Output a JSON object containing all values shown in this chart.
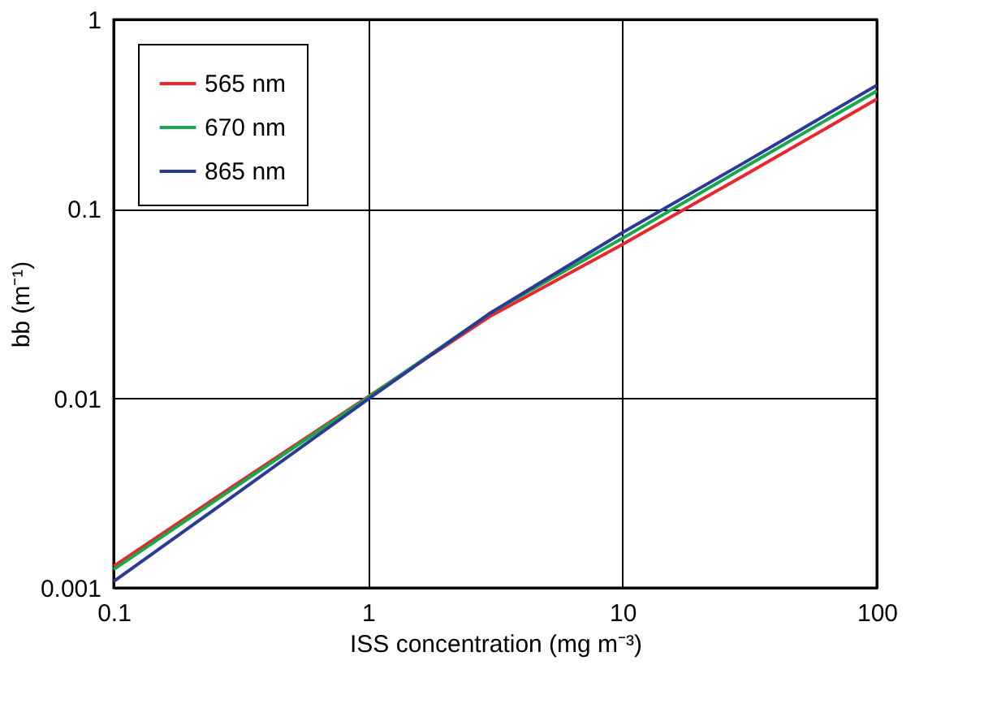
{
  "chart_data": {
    "type": "line",
    "xlabel": "ISS concentration (mg m⁻³)",
    "ylabel": "bb (m⁻¹)",
    "log": "xy",
    "grid": true,
    "legend": "top left",
    "marker": "none",
    "line_style": "solid",
    "x": [
      0.1,
      0.3,
      1,
      3,
      10,
      30,
      100
    ],
    "xlim": [
      0.1,
      100
    ],
    "xticks": [
      0.1,
      1,
      10,
      100
    ],
    "ylim": [
      0.001,
      1
    ],
    "yticks": [
      0.001,
      0.01,
      0.1,
      1
    ],
    "series": [
      {
        "name": "565 nm",
        "color": "#e8262b",
        "values": [
          0.0013,
          0.0035,
          0.0102,
          0.027,
          0.065,
          0.15,
          0.38
        ]
      },
      {
        "name": "670 nm",
        "color": "#17a84b",
        "values": [
          0.00125,
          0.0034,
          0.0101,
          0.028,
          0.07,
          0.165,
          0.42
        ]
      },
      {
        "name": "865 nm",
        "color": "#2b3a97",
        "values": [
          0.00108,
          0.0031,
          0.0099,
          0.028,
          0.075,
          0.175,
          0.45
        ]
      }
    ]
  }
}
